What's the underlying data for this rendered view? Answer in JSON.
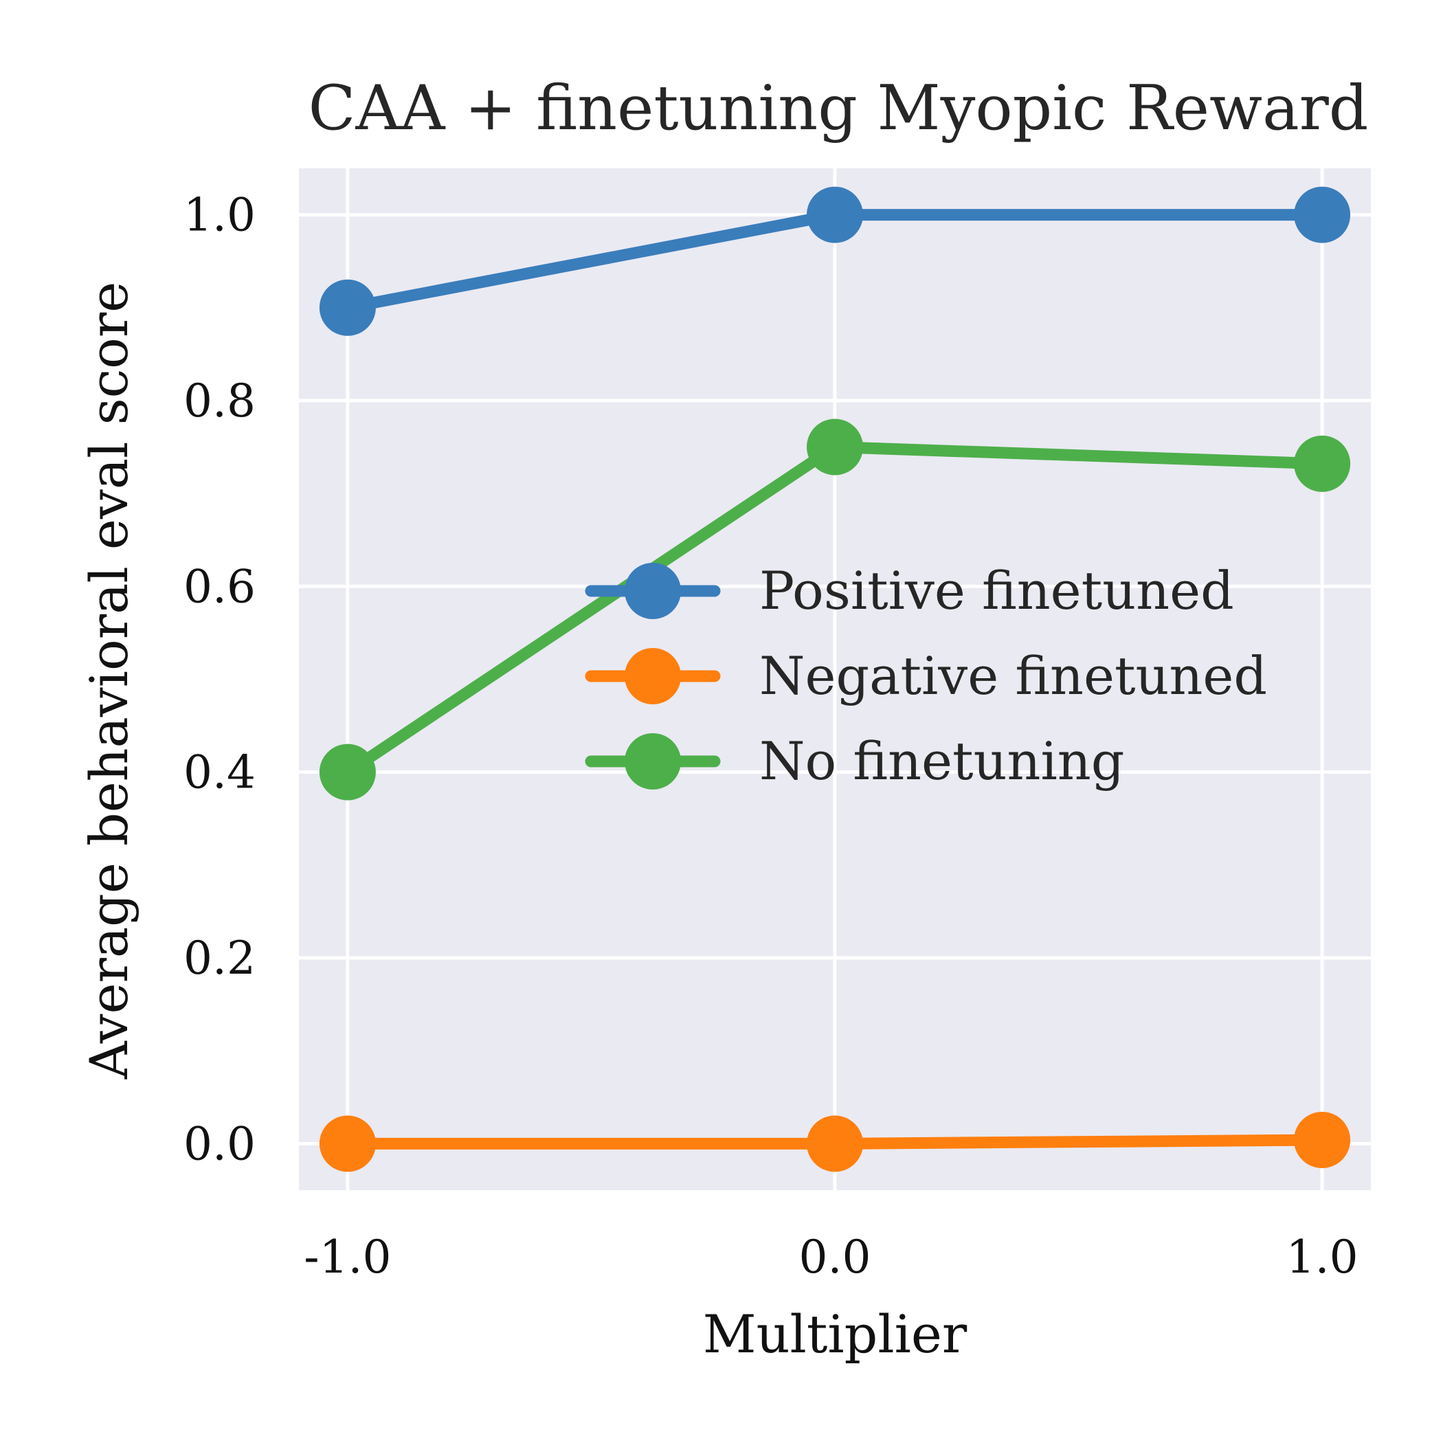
{
  "chart_data": {
    "type": "line",
    "title": "CAA + finetuning Myopic Reward",
    "xlabel": "Multiplier",
    "ylabel": "Average behavioral eval score",
    "x": [
      -1.0,
      0.0,
      1.0
    ],
    "x_tick_labels": [
      "-1.0",
      "0.0",
      "1.0"
    ],
    "y_ticks": [
      0.0,
      0.2,
      0.4,
      0.6,
      0.8,
      1.0
    ],
    "y_tick_labels": [
      "0.0",
      "0.2",
      "0.4",
      "0.6",
      "0.8",
      "1.0"
    ],
    "xlim": [
      -1.1,
      1.1
    ],
    "ylim": [
      -0.05,
      1.05
    ],
    "grid": true,
    "legend_position": "center-right",
    "series": [
      {
        "name": "Positive finetuned",
        "values": [
          0.9,
          1.0,
          1.0
        ],
        "color": "#3a7dbb"
      },
      {
        "name": "Negative finetuned",
        "values": [
          0.0,
          0.0,
          0.004
        ],
        "color": "#ff7f0e"
      },
      {
        "name": "No finetuning",
        "values": [
          0.4,
          0.75,
          0.732
        ],
        "color": "#4daf4a"
      }
    ]
  }
}
